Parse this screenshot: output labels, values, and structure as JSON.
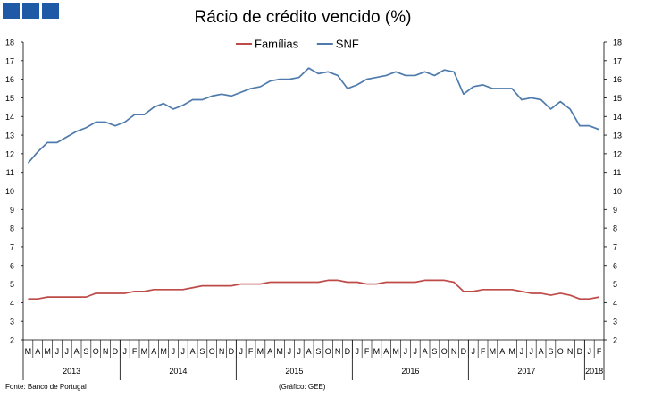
{
  "logo": {
    "icon": "brand-squares-icon",
    "color": "#1f5aa6"
  },
  "chart_data": {
    "type": "line",
    "title": "Rácio de crédito vencido (%)",
    "xlabel": "",
    "ylabel": "",
    "ylim": [
      2,
      18
    ],
    "y_ticks": [
      "2",
      "3",
      "4",
      "5",
      "6",
      "7",
      "8",
      "9",
      "10",
      "11",
      "12",
      "13",
      "14",
      "15",
      "16",
      "17",
      "18"
    ],
    "secondary_y_ticks": [
      "2",
      "3",
      "4",
      "5",
      "6",
      "7",
      "8",
      "9",
      "10",
      "11",
      "12",
      "13",
      "14",
      "15",
      "16",
      "17",
      "18"
    ],
    "grid": false,
    "legend_position": "top-center",
    "month_labels": [
      "M",
      "A",
      "M",
      "J",
      "J",
      "A",
      "S",
      "O",
      "N",
      "D",
      "J",
      "F",
      "M",
      "A",
      "M",
      "J",
      "J",
      "A",
      "S",
      "O",
      "N",
      "D",
      "J",
      "F",
      "M",
      "A",
      "M",
      "J",
      "J",
      "A",
      "S",
      "O",
      "N",
      "D",
      "J",
      "F",
      "M",
      "A",
      "M",
      "J",
      "J",
      "A",
      "S",
      "O",
      "N",
      "D",
      "J",
      "F",
      "M",
      "A",
      "M",
      "J",
      "J",
      "A",
      "S",
      "O",
      "N",
      "D",
      "J",
      "F"
    ],
    "years": [
      {
        "label": "2013",
        "start": 0,
        "end": 9
      },
      {
        "label": "2014",
        "start": 10,
        "end": 21
      },
      {
        "label": "2015",
        "start": 22,
        "end": 33
      },
      {
        "label": "2016",
        "start": 34,
        "end": 45
      },
      {
        "label": "2017",
        "start": 46,
        "end": 57
      },
      {
        "label": "2018",
        "start": 58,
        "end": 59
      }
    ],
    "series": [
      {
        "name": "Famílias",
        "color": "#be4b48",
        "values": [
          4.2,
          4.2,
          4.3,
          4.3,
          4.3,
          4.3,
          4.3,
          4.5,
          4.5,
          4.5,
          4.5,
          4.6,
          4.6,
          4.7,
          4.7,
          4.7,
          4.7,
          4.8,
          4.9,
          4.9,
          4.9,
          4.9,
          5.0,
          5.0,
          5.0,
          5.1,
          5.1,
          5.1,
          5.1,
          5.1,
          5.1,
          5.2,
          5.2,
          5.1,
          5.1,
          5.0,
          5.0,
          5.1,
          5.1,
          5.1,
          5.1,
          5.2,
          5.2,
          5.2,
          5.1,
          4.6,
          4.6,
          4.7,
          4.7,
          4.7,
          4.7,
          4.6,
          4.5,
          4.5,
          4.4,
          4.5,
          4.4,
          4.2,
          4.2,
          4.3
        ]
      },
      {
        "name": "SNF",
        "color": "#4f7bac",
        "values": [
          11.5,
          12.1,
          12.6,
          12.6,
          12.9,
          13.2,
          13.4,
          13.7,
          13.7,
          13.5,
          13.7,
          14.1,
          14.1,
          14.5,
          14.7,
          14.4,
          14.6,
          14.9,
          14.9,
          15.1,
          15.2,
          15.1,
          15.3,
          15.5,
          15.6,
          15.9,
          16.0,
          16.0,
          16.1,
          16.6,
          16.3,
          16.4,
          16.2,
          15.5,
          15.7,
          16.0,
          16.1,
          16.2,
          16.4,
          16.2,
          16.2,
          16.4,
          16.2,
          16.5,
          16.4,
          15.2,
          15.6,
          15.7,
          15.5,
          15.5,
          15.5,
          14.9,
          15.0,
          14.9,
          14.4,
          14.8,
          14.4,
          13.5,
          13.5,
          13.3
        ]
      }
    ]
  },
  "footer": {
    "source": "Fonte: Banco de Portugal",
    "credit": "(Gráfico: GEE)"
  }
}
